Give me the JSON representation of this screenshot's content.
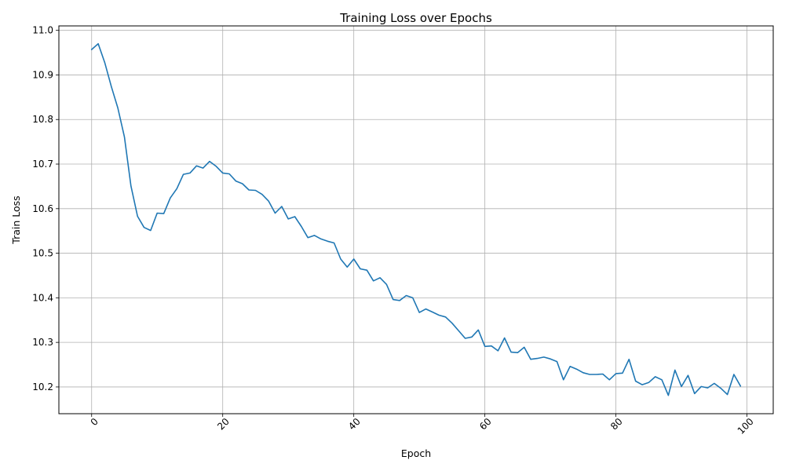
{
  "chart_data": {
    "type": "line",
    "title": "Training Loss over Epochs",
    "xlabel": "Epoch",
    "ylabel": "Train Loss",
    "xlim": [
      -5,
      104
    ],
    "ylim": [
      10.14,
      11.01
    ],
    "xticks": [
      0,
      20,
      40,
      60,
      80,
      100
    ],
    "xtick_labels": [
      "0",
      "20",
      "40",
      "60",
      "80",
      "100"
    ],
    "yticks": [
      10.2,
      10.3,
      10.4,
      10.5,
      10.6,
      10.7,
      10.8,
      10.9,
      11.0
    ],
    "ytick_labels": [
      "10.2",
      "10.3",
      "10.4",
      "10.5",
      "10.6",
      "10.7",
      "10.8",
      "10.9",
      "11.0"
    ],
    "grid": true,
    "line_color": "#1f77b4",
    "series": [
      {
        "x": [
          0,
          1,
          2,
          3,
          4,
          5,
          6,
          7,
          8,
          9,
          10,
          11,
          12,
          13,
          14,
          15,
          16,
          17,
          18,
          19,
          20,
          21,
          22,
          23,
          24,
          25,
          26,
          27,
          28,
          29,
          30,
          31,
          32,
          33,
          34,
          35,
          36,
          37,
          38,
          39,
          40,
          41,
          42,
          43,
          44,
          45,
          46,
          47,
          48,
          49,
          50,
          51,
          52,
          53,
          54,
          55,
          56,
          57,
          58,
          59,
          60,
          61,
          62,
          63,
          64,
          65,
          66,
          67,
          68,
          69,
          70,
          71,
          72,
          73,
          74,
          75,
          76,
          77,
          78,
          79,
          80,
          81,
          82,
          83,
          84,
          85,
          86,
          87,
          88,
          89,
          90,
          91,
          92,
          93,
          94,
          95,
          96,
          97,
          98,
          99
        ],
        "y": [
          10.957,
          10.97,
          10.928,
          10.874,
          10.826,
          10.761,
          10.651,
          10.583,
          10.558,
          10.551,
          10.59,
          10.589,
          10.624,
          10.645,
          10.677,
          10.68,
          10.696,
          10.691,
          10.706,
          10.695,
          10.68,
          10.678,
          10.662,
          10.656,
          10.642,
          10.641,
          10.632,
          10.617,
          10.59,
          10.605,
          10.577,
          10.582,
          10.56,
          10.535,
          10.54,
          10.532,
          10.527,
          10.523,
          10.487,
          10.469,
          10.487,
          10.465,
          10.462,
          10.438,
          10.445,
          10.43,
          10.396,
          10.394,
          10.405,
          10.4,
          10.367,
          10.375,
          10.368,
          10.361,
          10.357,
          10.343,
          10.326,
          10.309,
          10.312,
          10.328,
          10.291,
          10.292,
          10.281,
          10.31,
          10.278,
          10.277,
          10.289,
          10.262,
          10.264,
          10.267,
          10.263,
          10.257,
          10.216,
          10.246,
          10.24,
          10.232,
          10.228,
          10.228,
          10.229,
          10.216,
          10.23,
          10.231,
          10.262,
          10.213,
          10.205,
          10.21,
          10.223,
          10.216,
          10.181,
          10.238,
          10.201,
          10.226,
          10.185,
          10.201,
          10.198,
          10.208,
          10.197,
          10.183,
          10.228,
          10.202
        ]
      }
    ]
  }
}
